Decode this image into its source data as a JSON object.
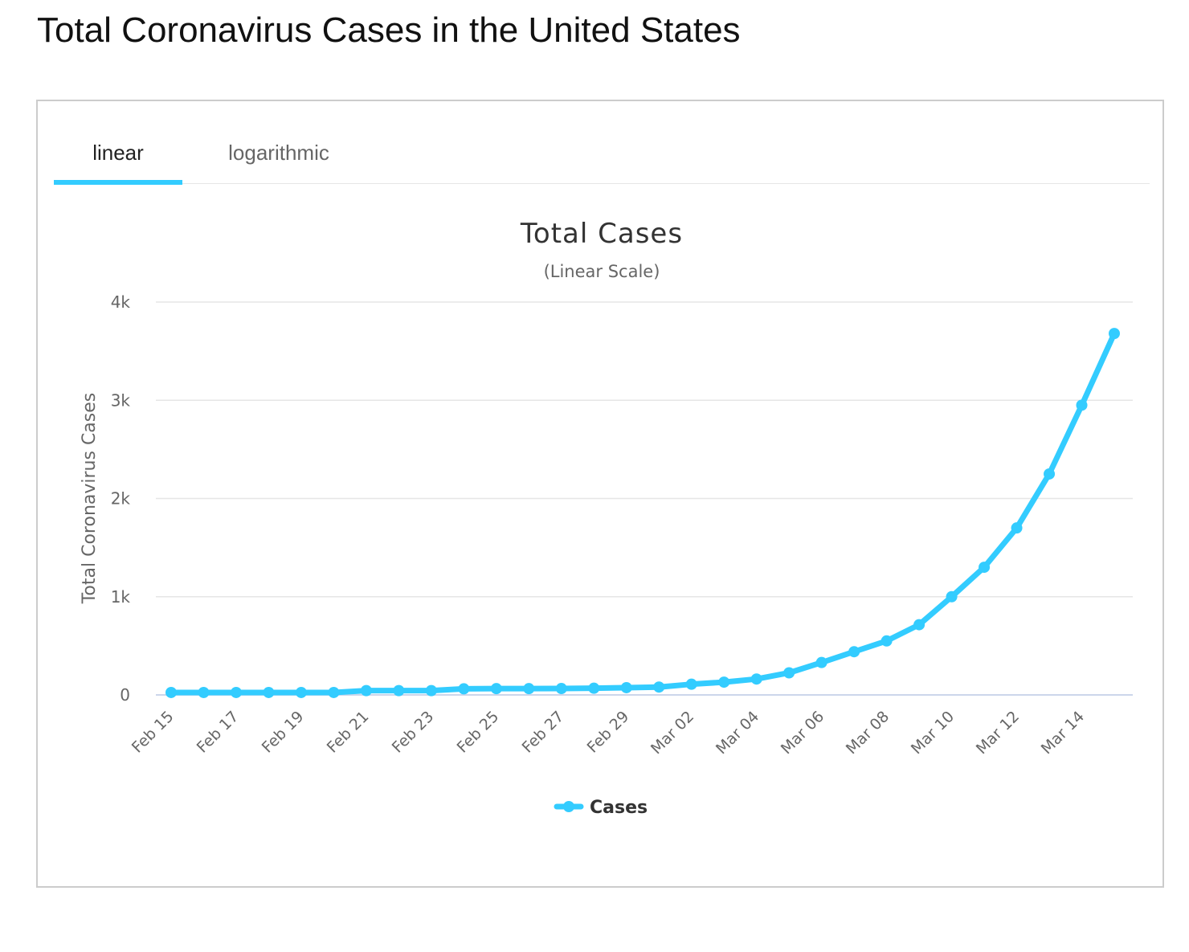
{
  "page": {
    "title": "Total Coronavirus Cases in the United States"
  },
  "tabs": [
    {
      "label": "linear",
      "active": true
    },
    {
      "label": "logarithmic",
      "active": false
    }
  ],
  "colors": {
    "series": "#33ccff",
    "grid": "#e6e6e6",
    "axis_text": "#666666",
    "title_text": "#333333"
  },
  "chart_data": {
    "type": "line",
    "title": "Total Cases",
    "subtitle": "(Linear Scale)",
    "ylabel": "Total Coronavirus Cases",
    "xlabel": "",
    "ylim": [
      0,
      4000
    ],
    "yticks": [
      0,
      1000,
      2000,
      3000,
      4000
    ],
    "ytick_labels": [
      "0",
      "1k",
      "2k",
      "3k",
      "4k"
    ],
    "xtick_labels": [
      "Feb 15",
      "Feb 17",
      "Feb 19",
      "Feb 21",
      "Feb 23",
      "Feb 25",
      "Feb 27",
      "Feb 29",
      "Mar 02",
      "Mar 04",
      "Mar 06",
      "Mar 08",
      "Mar 10",
      "Mar 12",
      "Mar 14"
    ],
    "legend_position": "bottom-center",
    "grid": true,
    "categories": [
      "Feb 15",
      "Feb 16",
      "Feb 17",
      "Feb 18",
      "Feb 19",
      "Feb 20",
      "Feb 21",
      "Feb 22",
      "Feb 23",
      "Feb 24",
      "Feb 25",
      "Feb 26",
      "Feb 27",
      "Feb 28",
      "Feb 29",
      "Mar 01",
      "Mar 02",
      "Mar 03",
      "Mar 04",
      "Mar 05",
      "Mar 06",
      "Mar 07",
      "Mar 08",
      "Mar 09",
      "Mar 10",
      "Mar 11",
      "Mar 12",
      "Mar 13",
      "Mar 14",
      "Mar 15"
    ],
    "series": [
      {
        "name": "Cases",
        "values": [
          25,
          25,
          25,
          25,
          25,
          25,
          44,
          44,
          44,
          62,
          64,
          64,
          65,
          68,
          74,
          80,
          109,
          130,
          162,
          225,
          330,
          440,
          550,
          715,
          1000,
          1300,
          1700,
          2250,
          2950,
          3680
        ]
      }
    ]
  }
}
